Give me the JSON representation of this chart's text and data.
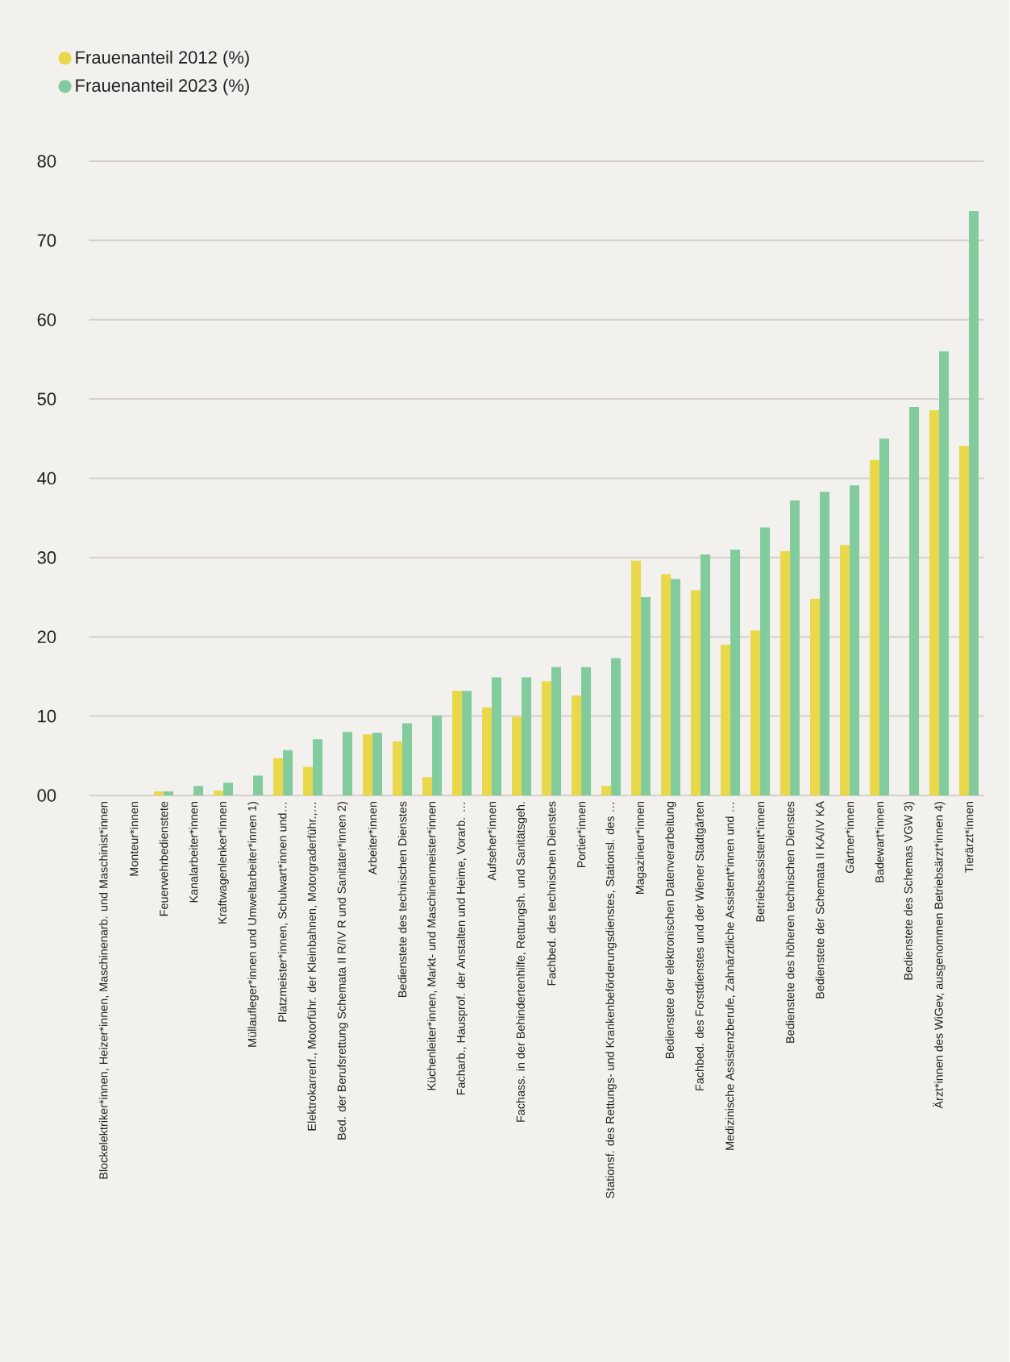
{
  "chart_data": {
    "type": "bar",
    "legend": "top left",
    "grid": "y",
    "categories": [
      "Blockelektriker*innen, Heizer*innen, Maschinenarb. und Maschinist*innen",
      "Monteur*innen",
      "Feuerwehrbedienstete",
      "Kanalarbeiter*innen",
      "Kraftwagenlenker*innen",
      "Müllaufleger*innen und Umweltarbeiter*innen 1)",
      "Platzmeister*innen, Schulwart*innen und…",
      "Elektrokarrenf., Motorführ. der Kleinbahnen, Motorgraderführ.,…",
      "Bed. der Berufsrettung Schemata II R/IV R und Sanitäter*innen 2)",
      "Arbeiter*innen",
      "Bedienstete des technischen Dienstes",
      "Küchenleiter*innen, Markt- und Maschinenmeister*innen",
      "Facharb., Hausprof. der Anstalten und Heime, Vorarb. …",
      "Aufseher*innen",
      "Fachass. in der Behindertenhilfe, Rettungsh. und Sanitätsgeh.",
      "Fachbed. des technischen Dienstes",
      "Portier*innen",
      "Stationsf. des Rettungs- und Krankenbeförderungsdienstes, Stationsl. des …",
      "Magazineur*innen",
      "Bedienstete der elektronischen Datenverarbeitung",
      "Fachbed. des Forstdienstes und der Wiener Stadtgärten",
      "Medizinische Assistenzberufe, Zahnärztliche Assistent*innen und …",
      "Betriebsassistent*innen",
      "Bedienstete des höheren technischen Dienstes",
      "Bedienstete der Schemata II KA/IV KA",
      "Gärtner*innen",
      "Badewart*innen",
      "Bedienstete des Schemas VGW 3)",
      "Ärzt*innen des WiGev, ausgenommen Betriebsärzt*innen 4)",
      "Tierärzt*innen"
    ],
    "series": [
      {
        "name": "Frauenanteil 2012 (%)",
        "color": "#e8d84a",
        "values": [
          0,
          0,
          0.5,
          0,
          0.6,
          0,
          4.7,
          3.6,
          0,
          7.7,
          6.8,
          2.3,
          13.2,
          11.1,
          9.9,
          14.4,
          12.6,
          1.2,
          29.6,
          27.9,
          25.9,
          19.0,
          20.8,
          30.8,
          24.8,
          31.6,
          42.3,
          0,
          48.6,
          44.1
        ]
      },
      {
        "name": "Frauenanteil 2023 (%)",
        "color": "#82cb9c",
        "values": [
          0,
          0,
          0.5,
          1.2,
          1.6,
          2.5,
          5.7,
          7.1,
          8.0,
          7.9,
          9.1,
          10.1,
          13.2,
          14.9,
          14.9,
          16.2,
          16.2,
          17.3,
          25.0,
          27.3,
          30.4,
          31.0,
          33.8,
          37.2,
          38.3,
          39.1,
          45.0,
          49.0,
          56.0,
          73.7
        ]
      }
    ],
    "ylim": [
      0,
      80
    ],
    "yticks": [
      {
        "value": 0,
        "label": "00"
      },
      10,
      20,
      30,
      40,
      50,
      60,
      70,
      80
    ]
  }
}
